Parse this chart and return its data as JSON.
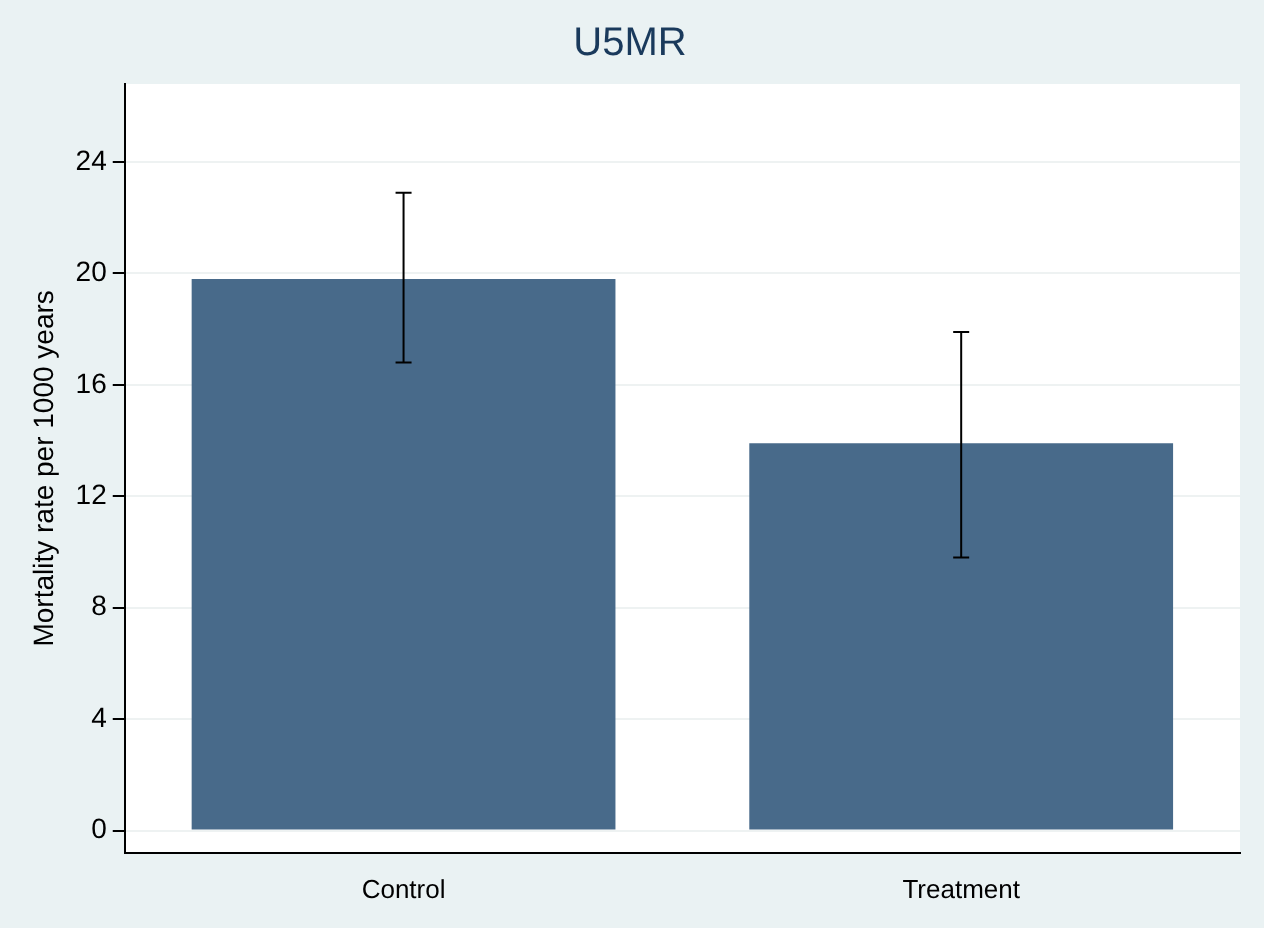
{
  "chart_data": {
    "type": "bar",
    "title": "U5MR",
    "ylabel": "Mortality rate per 1000 years",
    "categories": [
      "Control",
      "Treatment"
    ],
    "series": [
      {
        "color": "#486a8a",
        "values": [
          19.8,
          13.9
        ],
        "errors": [
          [
            16.8,
            22.9
          ],
          [
            9.8,
            17.9
          ]
        ]
      }
    ],
    "ylim": [
      -0.8,
      26.8
    ],
    "yticks": [
      0,
      4,
      8,
      12,
      16,
      20,
      24
    ],
    "grid": "y",
    "legend": false
  }
}
